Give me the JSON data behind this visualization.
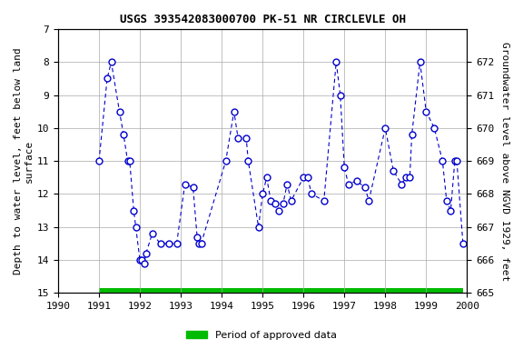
{
  "title": "USGS 393542083000700 PK-51 NR CIRCLEVLE OH",
  "ylabel_left": "Depth to water level, feet below land\nsurface",
  "ylabel_right": "Groundwater level above NGVD 1929, feet",
  "ylim_left": [
    15.0,
    7.0
  ],
  "ylim_right": [
    665.0,
    673.0
  ],
  "xlim": [
    1990,
    2000
  ],
  "xticks": [
    1990,
    1991,
    1992,
    1993,
    1994,
    1995,
    1996,
    1997,
    1998,
    1999,
    2000
  ],
  "yticks_left": [
    7.0,
    8.0,
    9.0,
    10.0,
    11.0,
    12.0,
    13.0,
    14.0,
    15.0
  ],
  "yticks_right": [
    665.0,
    666.0,
    667.0,
    668.0,
    669.0,
    670.0,
    671.0,
    672.0
  ],
  "line_color": "#0000CC",
  "marker_color": "#0000CC",
  "marker_face": "white",
  "grid_color": "#AAAAAA",
  "bg_color": "#FFFFFF",
  "legend_label": "Period of approved data",
  "legend_color": "#00BB00",
  "data_x": [
    1991.0,
    1991.2,
    1991.3,
    1991.5,
    1991.6,
    1991.7,
    1991.75,
    1991.85,
    1991.9,
    1992.0,
    1992.05,
    1992.1,
    1992.15,
    1992.3,
    1992.5,
    1992.7,
    1992.9,
    1993.1,
    1993.3,
    1993.4,
    1993.45,
    1993.5,
    1994.1,
    1994.3,
    1994.4,
    1994.6,
    1994.65,
    1994.9,
    1995.0,
    1995.1,
    1995.2,
    1995.3,
    1995.4,
    1995.5,
    1995.6,
    1995.7,
    1996.0,
    1996.1,
    1996.2,
    1996.5,
    1996.8,
    1996.9,
    1997.0,
    1997.1,
    1997.3,
    1997.5,
    1997.6,
    1998.0,
    1998.2,
    1998.4,
    1998.5,
    1998.6,
    1998.65,
    1998.85,
    1999.0,
    1999.2,
    1999.4,
    1999.5,
    1999.6,
    1999.7,
    1999.75,
    1999.9
  ],
  "data_y": [
    11.0,
    8.5,
    8.0,
    9.5,
    10.2,
    11.0,
    11.0,
    12.5,
    13.0,
    14.0,
    14.0,
    14.1,
    13.8,
    13.2,
    13.5,
    13.5,
    13.5,
    11.7,
    11.8,
    13.3,
    13.5,
    13.5,
    11.0,
    9.5,
    10.3,
    10.3,
    11.0,
    13.0,
    12.0,
    11.5,
    12.2,
    12.3,
    12.5,
    12.3,
    11.7,
    12.2,
    11.5,
    11.5,
    12.0,
    12.2,
    8.0,
    9.0,
    11.2,
    11.7,
    11.6,
    11.8,
    12.2,
    10.0,
    11.3,
    11.7,
    11.5,
    11.5,
    10.2,
    8.0,
    9.5,
    10.0,
    11.0,
    12.2,
    12.5,
    11.0,
    11.0,
    13.5
  ],
  "bar_x_start": 1991.0,
  "bar_x_end": 1999.9,
  "title_fontsize": 9,
  "tick_fontsize": 8,
  "label_fontsize": 8
}
